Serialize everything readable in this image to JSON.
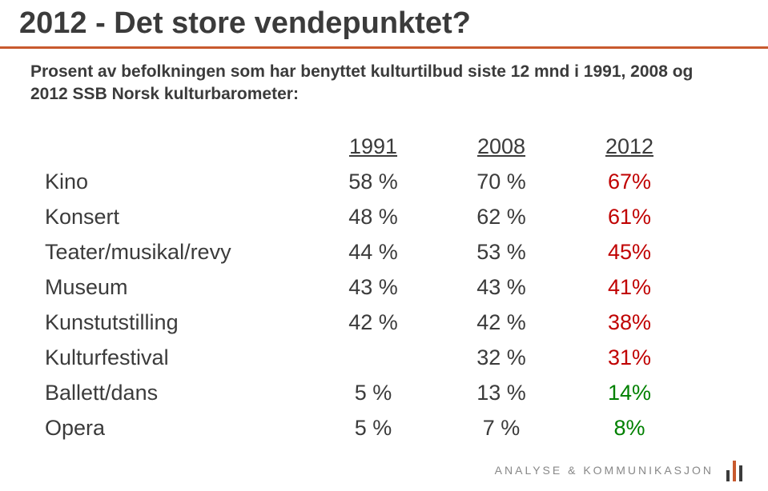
{
  "title": "2012 - Det store vendepunktet?",
  "subtitle": "Prosent av befolkningen som har benyttet kulturtilbud siste 12 mnd i 1991, 2008 og 2012 SSB Norsk kulturbarometer:",
  "colors": {
    "rule": "#c85a2e",
    "text": "#3b3b3b",
    "down": "#c00000",
    "up": "#008000",
    "background": "#ffffff"
  },
  "table": {
    "headers": [
      "1991",
      "2008",
      "2012"
    ],
    "rows": [
      {
        "label": "Kino",
        "v1991": "58 %",
        "v2008": "70 %",
        "v2012": "67%",
        "trend": "down"
      },
      {
        "label": "Konsert",
        "v1991": "48 %",
        "v2008": "62 %",
        "v2012": "61%",
        "trend": "down"
      },
      {
        "label": "Teater/musikal/revy",
        "v1991": "44 %",
        "v2008": "53 %",
        "v2012": "45%",
        "trend": "down"
      },
      {
        "label": "Museum",
        "v1991": "43 %",
        "v2008": "43 %",
        "v2012": "41%",
        "trend": "down"
      },
      {
        "label": "Kunstutstilling",
        "v1991": "42 %",
        "v2008": "42 %",
        "v2012": "38%",
        "trend": "down"
      },
      {
        "label": "Kulturfestival",
        "v1991": "",
        "v2008": "32 %",
        "v2012": "31%",
        "trend": "down"
      },
      {
        "label": "Ballett/dans",
        "v1991": "5 %",
        "v2008": "13 %",
        "v2012": "14%",
        "trend": "up"
      },
      {
        "label": "Opera",
        "v1991": "5 %",
        "v2008": "7 %",
        "v2012": "8%",
        "trend": "up"
      }
    ]
  },
  "footer": {
    "brand": "ANALYSE & KOMMUNIKASJON"
  }
}
